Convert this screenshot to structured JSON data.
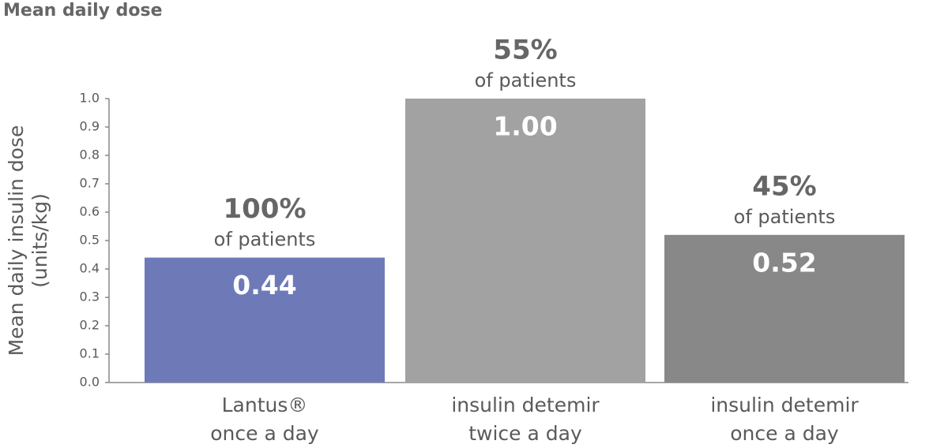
{
  "chart_data": {
    "type": "bar",
    "title": "Mean daily dose",
    "y_label": [
      "Mean daily insulin dose",
      "(units/kg)"
    ],
    "categories": [
      [
        "Lantus®",
        "once a day"
      ],
      [
        "insulin detemir",
        "twice a day"
      ],
      [
        "insulin detemir",
        "once a day"
      ]
    ],
    "values": [
      0.44,
      1.0,
      0.52
    ],
    "value_labels": [
      "0.44",
      "1.00",
      "0.52"
    ],
    "colors": [
      "#6e7ab8",
      "#a2a2a2",
      "#888888"
    ],
    "annotations": [
      {
        "percent": "100%",
        "text": "of patients"
      },
      {
        "percent": "55%",
        "text": "of patients"
      },
      {
        "percent": "45%",
        "text": "of patients"
      }
    ],
    "ylim": [
      0,
      1.0
    ],
    "yticks": [
      {
        "value": 0,
        "label": "0.0"
      },
      0.1,
      0.2,
      0.3,
      0.4,
      0.5,
      0.6,
      0.7,
      0.8,
      0.9,
      {
        "value": 1,
        "label": "1.0"
      }
    ]
  }
}
